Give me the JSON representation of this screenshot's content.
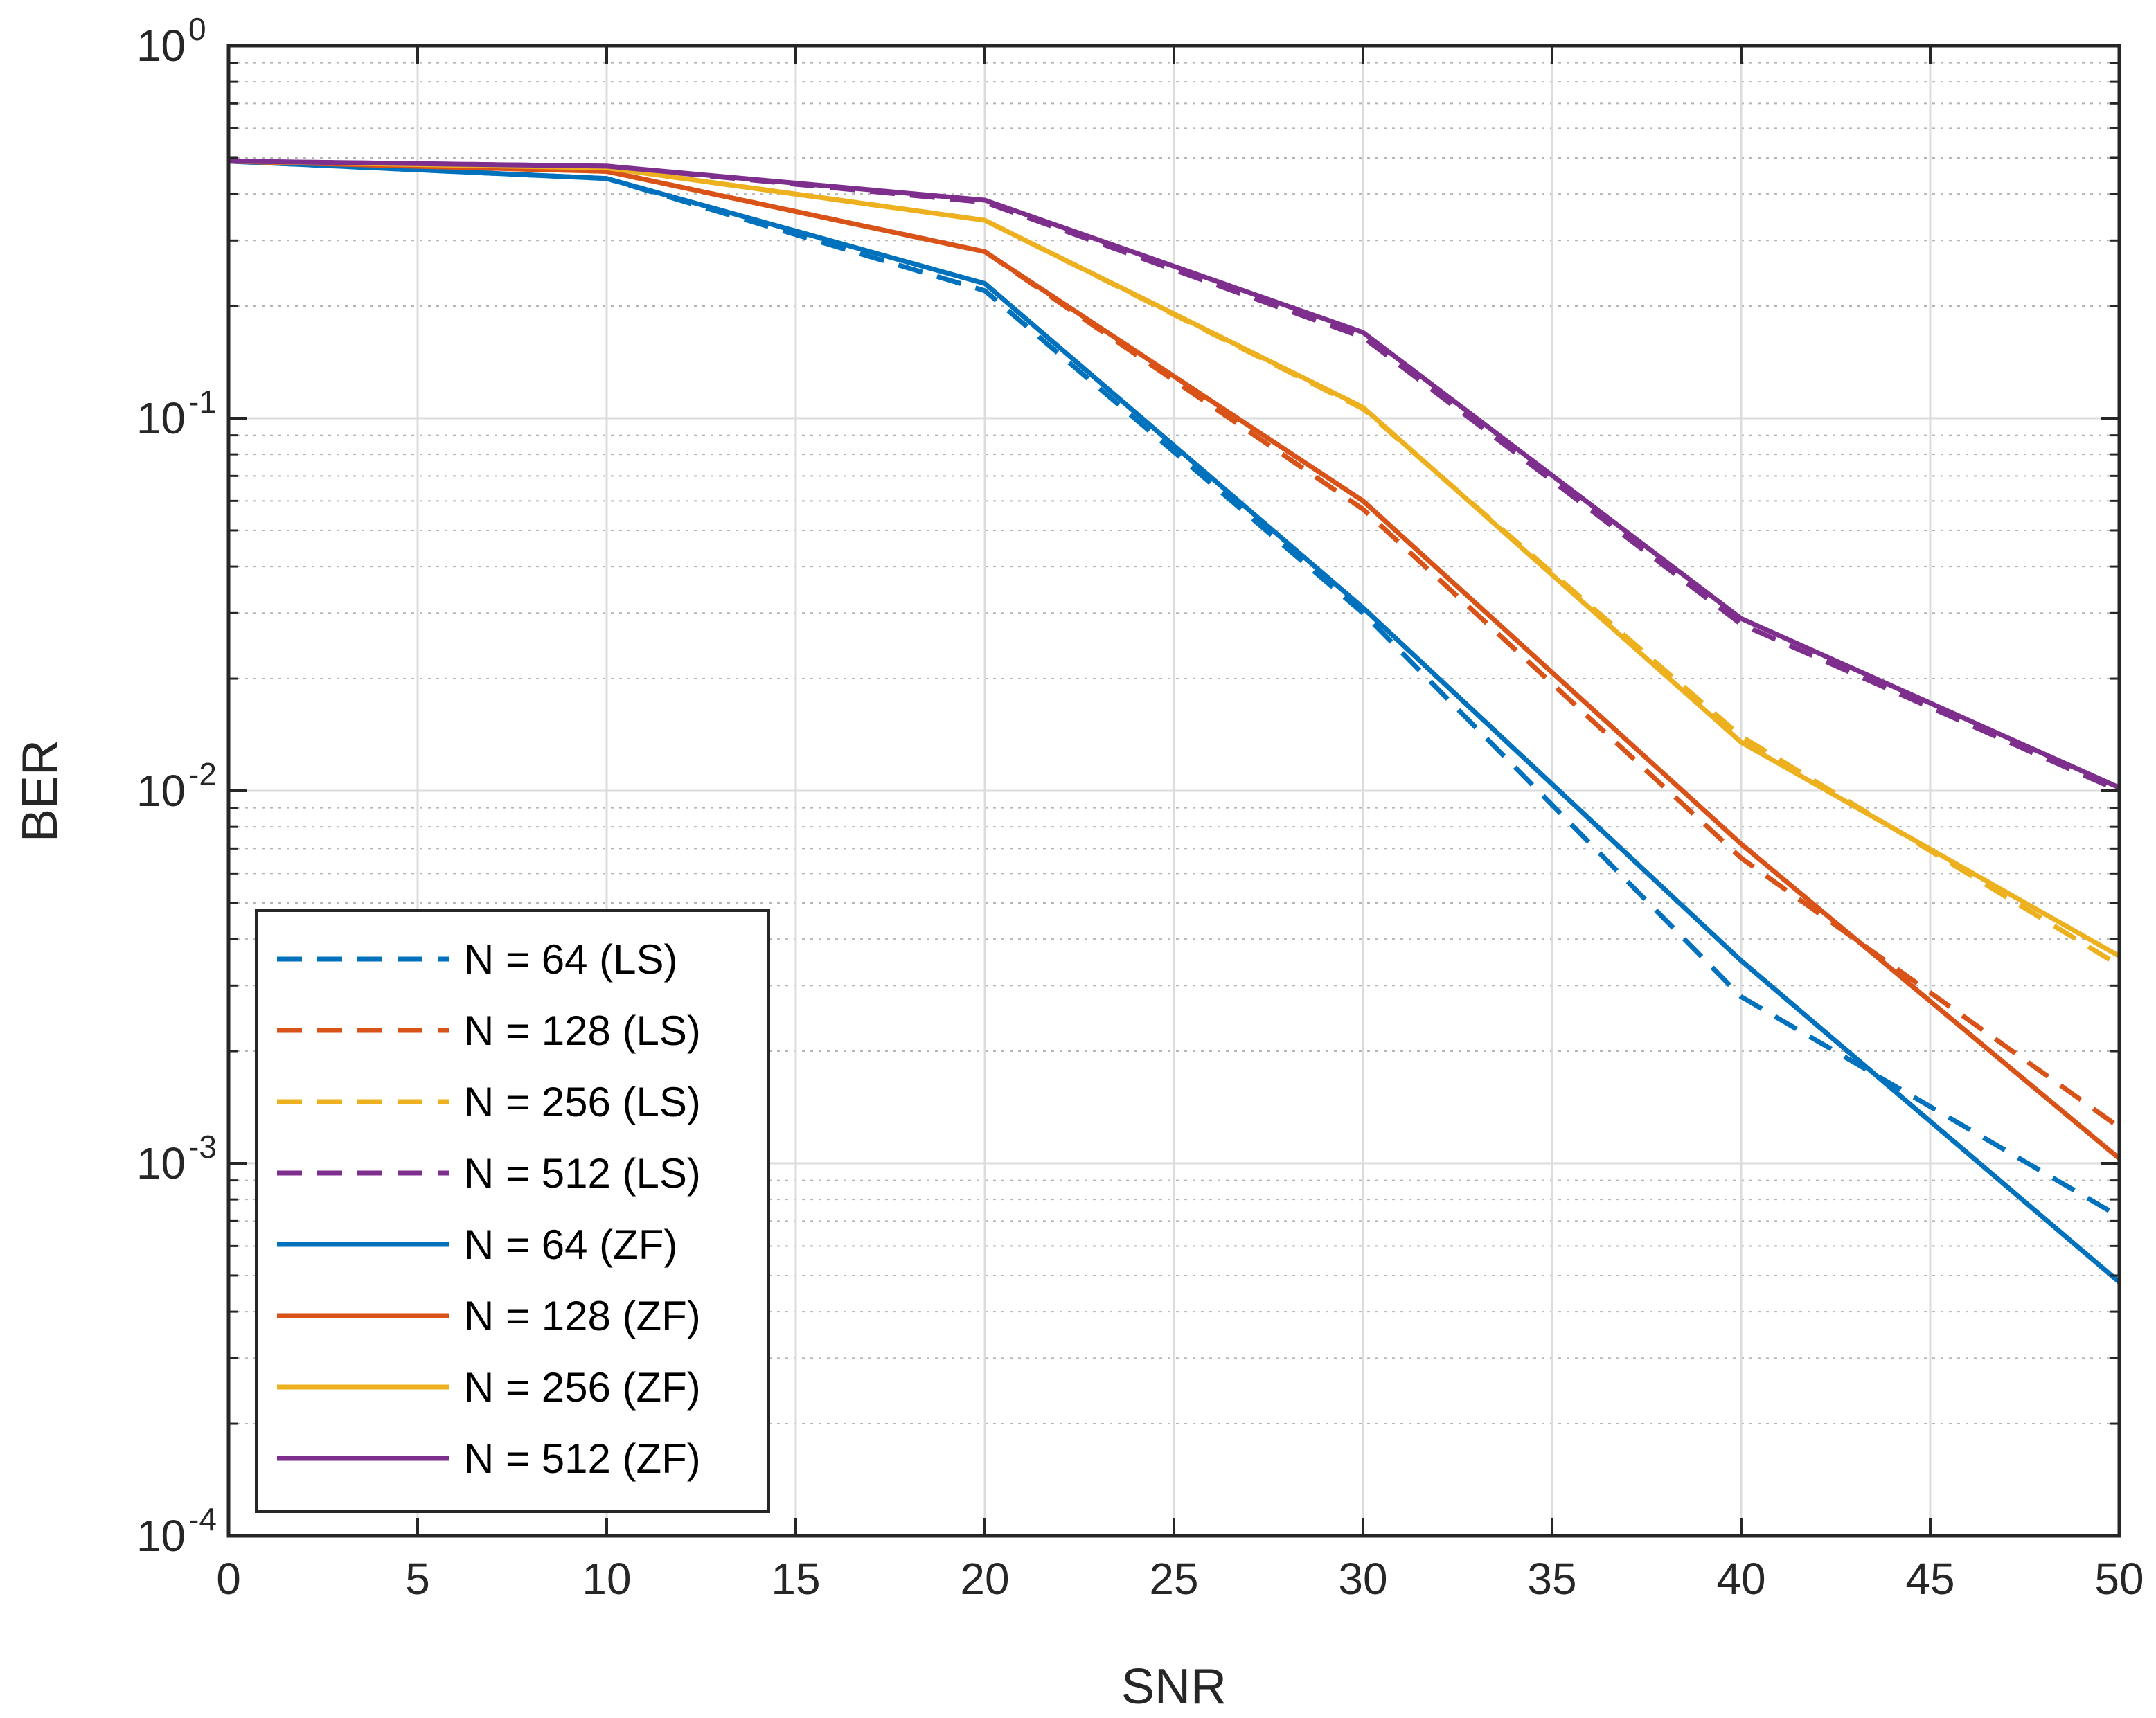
{
  "chart_data": {
    "type": "line",
    "title": "",
    "xlabel": "SNR",
    "ylabel": "BER",
    "yscale": "log",
    "xlim": [
      0,
      50
    ],
    "ylim": [
      0.0001,
      1
    ],
    "grid": true,
    "legend_position": "bottom-left",
    "xticks": [
      0,
      5,
      10,
      15,
      20,
      25,
      30,
      35,
      40,
      45,
      50
    ],
    "yticks": [
      {
        "value": 1,
        "base": "10",
        "exp": "0"
      },
      {
        "value": 0.1,
        "base": "10",
        "exp": "-1"
      },
      {
        "value": 0.01,
        "base": "10",
        "exp": "-2"
      },
      {
        "value": 0.001,
        "base": "10",
        "exp": "-3"
      },
      {
        "value": 0.0001,
        "base": "10",
        "exp": "-4"
      }
    ],
    "x": [
      0,
      10,
      20,
      30,
      40,
      50
    ],
    "series": [
      {
        "name": "N = 64 (LS)",
        "style": "dashed",
        "color": "#0072BD",
        "values": [
          0.49,
          0.44,
          0.22,
          0.03,
          0.0028,
          0.00072
        ]
      },
      {
        "name": "N = 128 (LS)",
        "style": "dashed",
        "color": "#D95319",
        "values": [
          0.49,
          0.46,
          0.28,
          0.057,
          0.0066,
          0.00125
        ]
      },
      {
        "name": "N = 256 (LS)",
        "style": "dashed",
        "color": "#EDB120",
        "values": [
          0.49,
          0.47,
          0.34,
          0.106,
          0.014,
          0.0034
        ]
      },
      {
        "name": "N = 512 (LS)",
        "style": "dashed",
        "color": "#7E2F8E",
        "values": [
          0.49,
          0.475,
          0.38,
          0.165,
          0.028,
          0.01
        ]
      },
      {
        "name": "N = 64 (ZF)",
        "style": "solid",
        "color": "#0072BD",
        "values": [
          0.49,
          0.44,
          0.23,
          0.031,
          0.0035,
          0.00048
        ]
      },
      {
        "name": "N = 128 (ZF)",
        "style": "solid",
        "color": "#D95319",
        "values": [
          0.49,
          0.46,
          0.28,
          0.06,
          0.0072,
          0.00103
        ]
      },
      {
        "name": "N = 256 (ZF)",
        "style": "solid",
        "color": "#EDB120",
        "values": [
          0.49,
          0.47,
          0.34,
          0.107,
          0.0135,
          0.0036
        ]
      },
      {
        "name": "N = 512 (ZF)",
        "style": "solid",
        "color": "#7E2F8E",
        "values": [
          0.49,
          0.475,
          0.385,
          0.17,
          0.029,
          0.0102
        ]
      }
    ]
  }
}
